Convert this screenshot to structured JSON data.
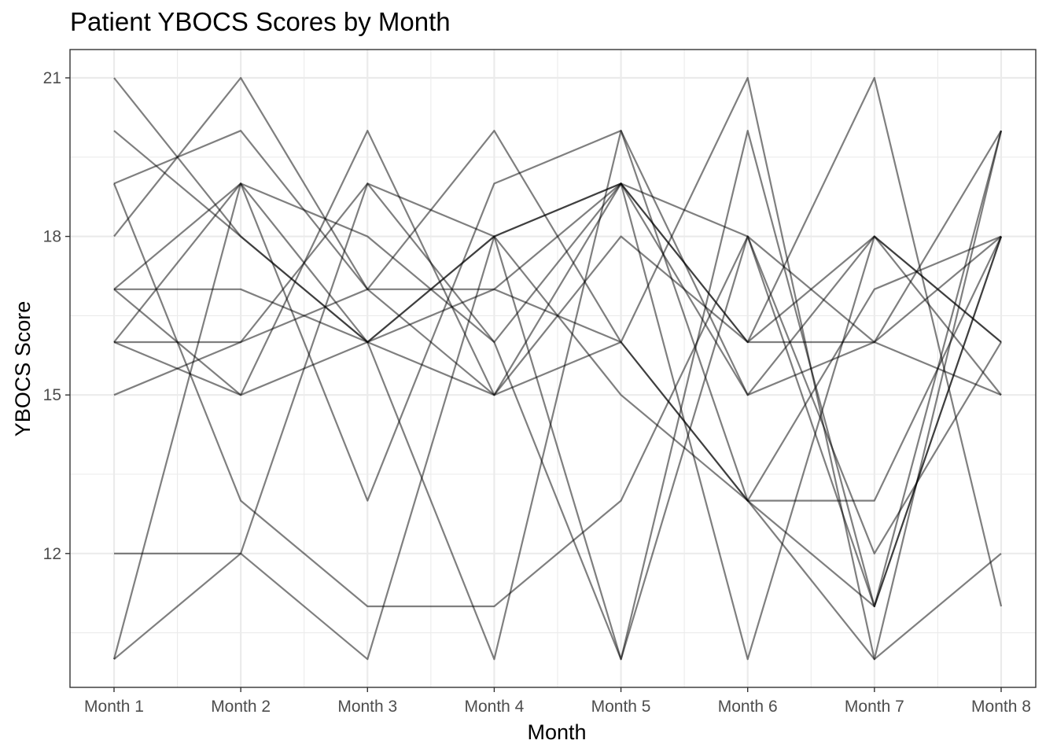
{
  "chart_data": {
    "type": "line",
    "title": "Patient YBOCS Scores by Month",
    "xlabel": "Month",
    "ylabel": "YBOCS Score",
    "categories": [
      "Month 1",
      "Month 2",
      "Month 3",
      "Month 4",
      "Month 5",
      "Month 6",
      "Month 7",
      "Month 8"
    ],
    "yticks": [
      12,
      15,
      18,
      21
    ],
    "ylim": [
      9.5,
      21.5
    ],
    "grid": true,
    "legend": "none",
    "line_color": "#000000",
    "series": [
      {
        "values": [
          21,
          18,
          16,
          17,
          16,
          13,
          13,
          18
        ]
      },
      {
        "values": [
          20,
          18,
          16,
          18,
          15,
          13,
          11,
          18
        ]
      },
      {
        "values": [
          19,
          20,
          17,
          15,
          19,
          16,
          16,
          18
        ]
      },
      {
        "values": [
          19,
          13,
          11,
          11,
          13,
          18,
          12,
          16
        ]
      },
      {
        "values": [
          18,
          21,
          17,
          17,
          19,
          18,
          16,
          15
        ]
      },
      {
        "values": [
          17,
          17,
          16,
          15,
          16,
          13,
          17,
          18
        ]
      },
      {
        "values": [
          17,
          15,
          20,
          15,
          18,
          16,
          18,
          16
        ]
      },
      {
        "values": [
          16,
          16,
          17,
          20,
          16,
          21,
          10,
          20
        ]
      },
      {
        "values": [
          16,
          19,
          13,
          19,
          20,
          15,
          16,
          20
        ]
      },
      {
        "values": [
          16,
          15,
          16,
          18,
          19,
          15,
          18,
          15
        ]
      },
      {
        "values": [
          15,
          16,
          19,
          16,
          19,
          10,
          18,
          16
        ]
      },
      {
        "values": [
          12,
          12,
          19,
          18,
          10,
          20,
          11,
          18
        ]
      },
      {
        "values": [
          10,
          19,
          18,
          16,
          10,
          18,
          11,
          20
        ]
      },
      {
        "values": [
          10,
          12,
          10,
          18,
          19,
          16,
          21,
          11
        ]
      },
      {
        "values": [
          17,
          19,
          16,
          10,
          20,
          13,
          10,
          12
        ]
      }
    ]
  }
}
